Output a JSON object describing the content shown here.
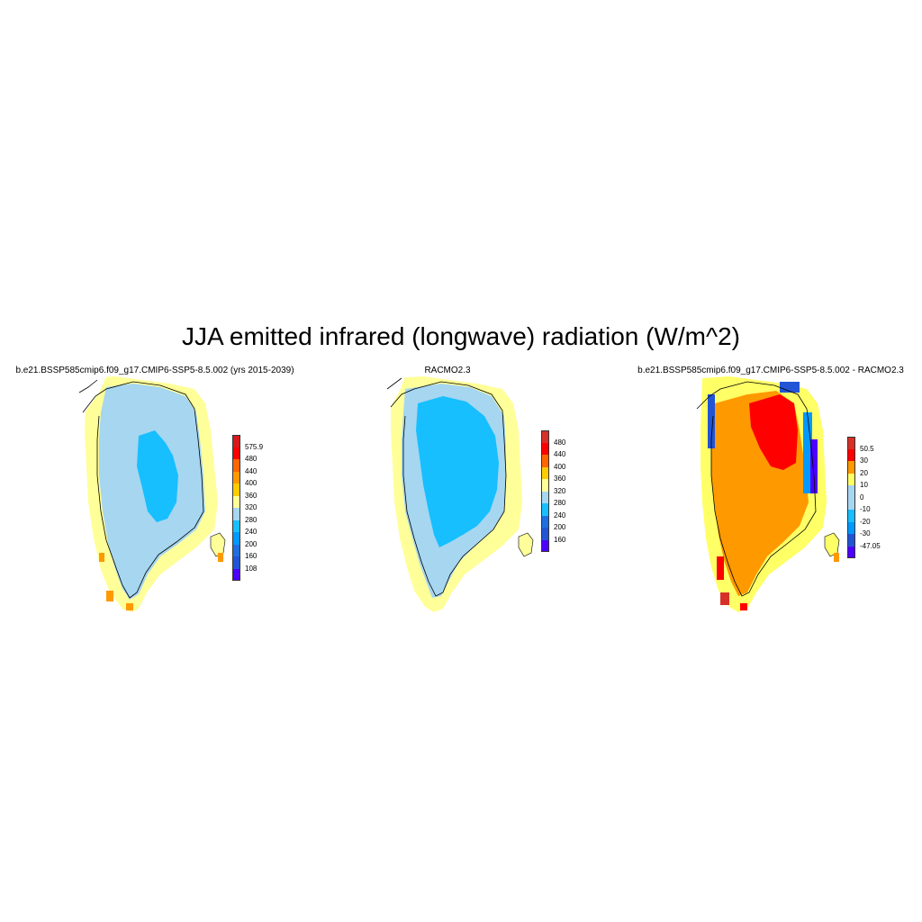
{
  "title": "JJA emitted infrared (longwave) radiation (W/m^2)",
  "panels": [
    {
      "title": "b.e21.BSSP585cmip6.f09_g17.CMIP6-SSP5-8.5.002 (yrs 2015-2039)",
      "colorbar": {
        "colors": [
          "#d7191c",
          "#ff0000",
          "#ff6600",
          "#ff9900",
          "#ffcc00",
          "#ffff99",
          "#a6d6f0",
          "#17bfff",
          "#0099ff",
          "#1f6fe0",
          "#2255d6",
          "#4d00ff"
        ],
        "labels": [
          "575.9",
          "480",
          "440",
          "400",
          "360",
          "320",
          "280",
          "240",
          "200",
          "160",
          "108"
        ]
      }
    },
    {
      "title": "RACMO2.3",
      "colorbar": {
        "colors": [
          "#d73027",
          "#ff0000",
          "#ff6600",
          "#ff9900",
          "#ffcc00",
          "#ffff99",
          "#a6d6f0",
          "#17bfff",
          "#0099ff",
          "#1f6fe0",
          "#2255d6",
          "#4d00ff"
        ],
        "labels": [
          "480",
          "440",
          "400",
          "360",
          "320",
          "280",
          "240",
          "200",
          "160"
        ]
      }
    },
    {
      "title": "b.e21.BSSP585cmip6.f09_g17.CMIP6-SSP5-8.5.002 - RACMO2.3",
      "colorbar": {
        "colors": [
          "#d73027",
          "#ff0000",
          "#ff9900",
          "#ffff66",
          "#a6d6f0",
          "#17bfff",
          "#0099ff",
          "#2255d6",
          "#4d00ff"
        ],
        "labels": [
          "50.5",
          "30",
          "20",
          "10",
          "0",
          "-10",
          "-20",
          "-30",
          "-47.05"
        ]
      }
    }
  ]
}
